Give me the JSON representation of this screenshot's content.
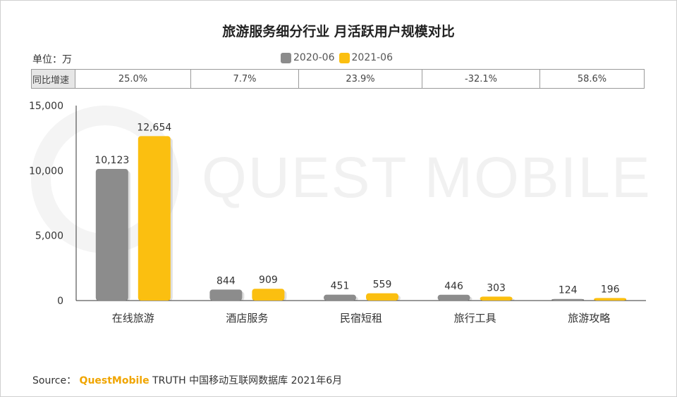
{
  "title": "旅游服务细分行业 月活跃用户规模对比",
  "unit_label": "单位：万",
  "yoy": {
    "header": "同比增速",
    "values": [
      "25.0%",
      "7.7%",
      "23.9%",
      "-32.1%",
      "58.6%"
    ]
  },
  "watermark": "QUEST MOBILE",
  "source": {
    "prefix": "Source：",
    "brand": "QuestMobile",
    "suffix": "TRUTH 中国移动互联网数据库 2021年6月"
  },
  "chart_data": {
    "type": "bar",
    "categories": [
      "在线旅游",
      "酒店服务",
      "民宿短租",
      "旅行工具",
      "旅游攻略"
    ],
    "series": [
      {
        "name": "2020-06",
        "values": [
          10123,
          844,
          451,
          446,
          124
        ],
        "labels": [
          "10,123",
          "844",
          "451",
          "446",
          "124"
        ],
        "color": "#8c8c8c"
      },
      {
        "name": "2021-06",
        "values": [
          12654,
          909,
          559,
          303,
          196
        ],
        "labels": [
          "12,654",
          "909",
          "559",
          "303",
          "196"
        ],
        "color": "#fbbf10"
      }
    ],
    "yticks": [
      "0",
      "5,000",
      "10,000",
      "15,000"
    ],
    "ylim": [
      0,
      15000
    ],
    "grid": false,
    "legend_position": "top-center"
  }
}
